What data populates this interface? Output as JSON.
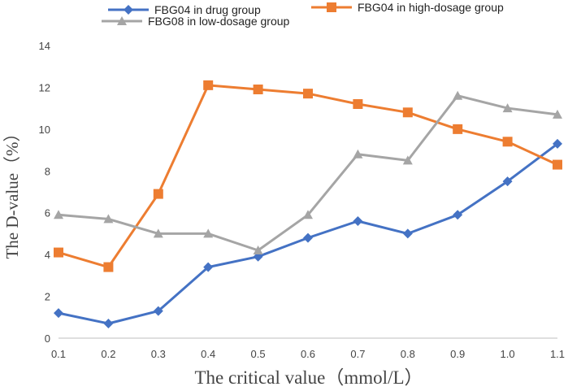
{
  "chart_data": {
    "type": "line",
    "title": "",
    "xlabel": "The critical value（mmol/L）",
    "ylabel": "The D-value（%）",
    "x": [
      "0.1",
      "0.2",
      "0.3",
      "0.4",
      "0.5",
      "0.6",
      "0.7",
      "0.8",
      "0.9",
      "1.0",
      "1.1"
    ],
    "yticks": [
      "0",
      "2",
      "4",
      "6",
      "8",
      "10",
      "12",
      "14"
    ],
    "ylim": [
      0,
      14
    ],
    "grid": false,
    "legend_position": "top",
    "series": [
      {
        "name": "FBG04 in drug group",
        "color": "#4472c4",
        "marker": "diamond",
        "values": [
          1.2,
          0.7,
          1.3,
          3.4,
          3.9,
          4.8,
          5.6,
          5.0,
          5.9,
          7.5,
          9.3
        ]
      },
      {
        "name": "FBG04 in high-dosage group",
        "color": "#ed7d31",
        "marker": "square",
        "values": [
          4.1,
          3.4,
          6.9,
          12.1,
          11.9,
          11.7,
          11.2,
          10.8,
          10.0,
          9.4,
          8.3
        ]
      },
      {
        "name": "FBG08 in low-dosage group",
        "color": "#a5a5a5",
        "marker": "triangle",
        "values": [
          5.9,
          5.7,
          5.0,
          5.0,
          4.2,
          5.9,
          8.8,
          8.5,
          11.6,
          11.0,
          10.7
        ]
      }
    ]
  }
}
